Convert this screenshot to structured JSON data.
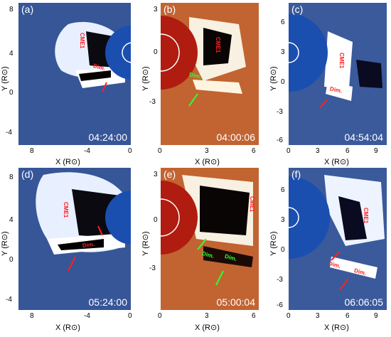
{
  "panels": [
    {
      "id": "a",
      "label": "(a)",
      "time": "04:24:00",
      "cme": "CME1",
      "dim": "Dim."
    },
    {
      "id": "b",
      "label": "(b)",
      "time": "04:00:06",
      "cme": "CME1",
      "dim": "Dim."
    },
    {
      "id": "c",
      "label": "(c)",
      "time": "04:54:04",
      "cme": "CME1",
      "dim": "Dim."
    },
    {
      "id": "d",
      "label": "(d)",
      "time": "05:24:00",
      "cme": "CME1",
      "dim": "Dim."
    },
    {
      "id": "e",
      "label": "(e)",
      "time": "05:00:04",
      "cme": "CME1",
      "dim": "Dim.",
      "dim2": "Dim."
    },
    {
      "id": "f",
      "label": "(f)",
      "time": "06:06:05",
      "cme": "CME1",
      "dim": "Dim."
    }
  ],
  "axes": {
    "xlabel": "X (R⊙)",
    "ylabel": "Y (R⊙)",
    "a": {
      "x_ticks": [
        "8",
        "-4",
        "0"
      ],
      "y_ticks": [
        "8",
        "4",
        "0",
        "-4"
      ]
    },
    "b": {
      "x_ticks": [
        "0",
        "3",
        "6"
      ],
      "y_ticks": [
        "3",
        "0",
        "-3"
      ]
    },
    "c": {
      "x_ticks": [
        "0",
        "3",
        "6",
        "9"
      ],
      "y_ticks": [
        "6",
        "3",
        "0",
        "-3",
        "-6"
      ]
    },
    "d": {
      "x_ticks": [
        "8",
        "-4",
        "0"
      ],
      "y_ticks": [
        "8",
        "4",
        "0",
        "-4"
      ]
    },
    "e": {
      "x_ticks": [
        "0",
        "3",
        "6"
      ],
      "y_ticks": [
        "3",
        "0",
        "-3"
      ]
    },
    "f": {
      "x_ticks": [
        "0",
        "3",
        "6",
        "9"
      ],
      "y_ticks": [
        "6",
        "3",
        "0",
        "-3",
        "-6"
      ]
    }
  },
  "colors": {
    "blue_bg": "#1f3f8a",
    "blue_disk": "#1a4fb0",
    "red_bg": "#b8501e",
    "red_disk": "#b01c10",
    "annot_red": "#ff2020",
    "annot_green": "#30ff30"
  }
}
